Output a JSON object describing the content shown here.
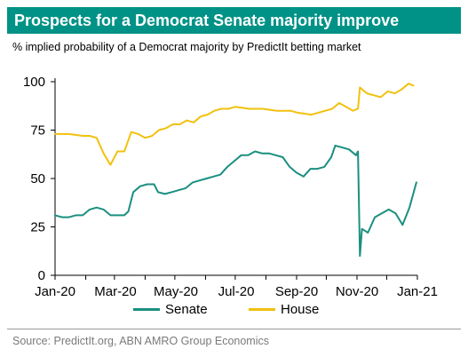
{
  "header": {
    "title": "Prospects for a Democrat Senate majority improve"
  },
  "subtitle": "% implied probability of a Democrat majority by PredictIt betting market",
  "source": "Source: PredictIt.org, ABN AMRO Group Economics",
  "colors": {
    "header_bg": "#009286",
    "senate": "#1a8f80",
    "house": "#f2c10f",
    "axis": "#000000"
  },
  "chart_data": {
    "type": "line",
    "title": "Prospects for a Democrat Senate majority improve",
    "subtitle": "% implied probability of a Democrat majority by PredictIt betting market",
    "x_ticks": [
      "Jan-20",
      "Mar-20",
      "May-20",
      "Jul-20",
      "Sep-20",
      "Nov-20",
      "Jan-21"
    ],
    "y_ticks": [
      0,
      25,
      50,
      75,
      100
    ],
    "ylim": [
      0,
      100
    ],
    "xlim": [
      "2020-01-01",
      "2021-01-01"
    ],
    "grid": false,
    "legend_position": "bottom",
    "series": [
      {
        "name": "Senate",
        "color": "#1a8f80",
        "points": [
          [
            "2020-01-01",
            31
          ],
          [
            "2020-01-08",
            30
          ],
          [
            "2020-01-15",
            30
          ],
          [
            "2020-01-22",
            31
          ],
          [
            "2020-01-29",
            31
          ],
          [
            "2020-02-05",
            34
          ],
          [
            "2020-02-12",
            35
          ],
          [
            "2020-02-19",
            34
          ],
          [
            "2020-02-26",
            31
          ],
          [
            "2020-03-04",
            31
          ],
          [
            "2020-03-11",
            31
          ],
          [
            "2020-03-15",
            33
          ],
          [
            "2020-03-20",
            43
          ],
          [
            "2020-03-27",
            46
          ],
          [
            "2020-04-03",
            47
          ],
          [
            "2020-04-10",
            47
          ],
          [
            "2020-04-14",
            43
          ],
          [
            "2020-04-21",
            42
          ],
          [
            "2020-04-28",
            43
          ],
          [
            "2020-05-05",
            44
          ],
          [
            "2020-05-12",
            45
          ],
          [
            "2020-05-19",
            48
          ],
          [
            "2020-05-26",
            49
          ],
          [
            "2020-06-02",
            50
          ],
          [
            "2020-06-09",
            51
          ],
          [
            "2020-06-16",
            52
          ],
          [
            "2020-06-23",
            56
          ],
          [
            "2020-06-30",
            59
          ],
          [
            "2020-07-07",
            62
          ],
          [
            "2020-07-14",
            62
          ],
          [
            "2020-07-21",
            64
          ],
          [
            "2020-07-28",
            63
          ],
          [
            "2020-08-04",
            63
          ],
          [
            "2020-08-11",
            62
          ],
          [
            "2020-08-18",
            61
          ],
          [
            "2020-08-25",
            56
          ],
          [
            "2020-09-01",
            53
          ],
          [
            "2020-09-08",
            51
          ],
          [
            "2020-09-15",
            55
          ],
          [
            "2020-09-22",
            55
          ],
          [
            "2020-09-29",
            56
          ],
          [
            "2020-10-06",
            61
          ],
          [
            "2020-10-10",
            67
          ],
          [
            "2020-10-17",
            66
          ],
          [
            "2020-10-24",
            65
          ],
          [
            "2020-10-31",
            62
          ],
          [
            "2020-11-02",
            64
          ],
          [
            "2020-11-04",
            10
          ],
          [
            "2020-11-06",
            24
          ],
          [
            "2020-11-12",
            22
          ],
          [
            "2020-11-19",
            30
          ],
          [
            "2020-11-26",
            32
          ],
          [
            "2020-12-03",
            34
          ],
          [
            "2020-12-10",
            32
          ],
          [
            "2020-12-17",
            26
          ],
          [
            "2020-12-24",
            35
          ],
          [
            "2020-12-31",
            48
          ]
        ]
      },
      {
        "name": "House",
        "color": "#f2c10f",
        "points": [
          [
            "2020-01-01",
            73
          ],
          [
            "2020-01-15",
            73
          ],
          [
            "2020-01-29",
            72
          ],
          [
            "2020-02-05",
            72
          ],
          [
            "2020-02-12",
            71
          ],
          [
            "2020-02-19",
            63
          ],
          [
            "2020-02-26",
            57
          ],
          [
            "2020-03-04",
            64
          ],
          [
            "2020-03-11",
            64
          ],
          [
            "2020-03-18",
            74
          ],
          [
            "2020-03-25",
            73
          ],
          [
            "2020-04-01",
            71
          ],
          [
            "2020-04-08",
            72
          ],
          [
            "2020-04-15",
            75
          ],
          [
            "2020-04-22",
            76
          ],
          [
            "2020-04-29",
            78
          ],
          [
            "2020-05-06",
            78
          ],
          [
            "2020-05-13",
            80
          ],
          [
            "2020-05-20",
            79
          ],
          [
            "2020-05-27",
            82
          ],
          [
            "2020-06-03",
            83
          ],
          [
            "2020-06-10",
            85
          ],
          [
            "2020-06-17",
            86
          ],
          [
            "2020-06-24",
            86
          ],
          [
            "2020-07-01",
            87
          ],
          [
            "2020-07-15",
            86
          ],
          [
            "2020-07-29",
            86
          ],
          [
            "2020-08-12",
            85
          ],
          [
            "2020-08-26",
            85
          ],
          [
            "2020-09-02",
            84
          ],
          [
            "2020-09-16",
            83
          ],
          [
            "2020-09-30",
            85
          ],
          [
            "2020-10-07",
            86
          ],
          [
            "2020-10-14",
            89
          ],
          [
            "2020-10-21",
            87
          ],
          [
            "2020-10-28",
            85
          ],
          [
            "2020-11-02",
            86
          ],
          [
            "2020-11-04",
            97
          ],
          [
            "2020-11-11",
            94
          ],
          [
            "2020-11-18",
            93
          ],
          [
            "2020-11-25",
            92
          ],
          [
            "2020-12-02",
            95
          ],
          [
            "2020-12-09",
            94
          ],
          [
            "2020-12-16",
            96
          ],
          [
            "2020-12-23",
            99
          ],
          [
            "2020-12-28",
            98
          ]
        ]
      }
    ]
  }
}
